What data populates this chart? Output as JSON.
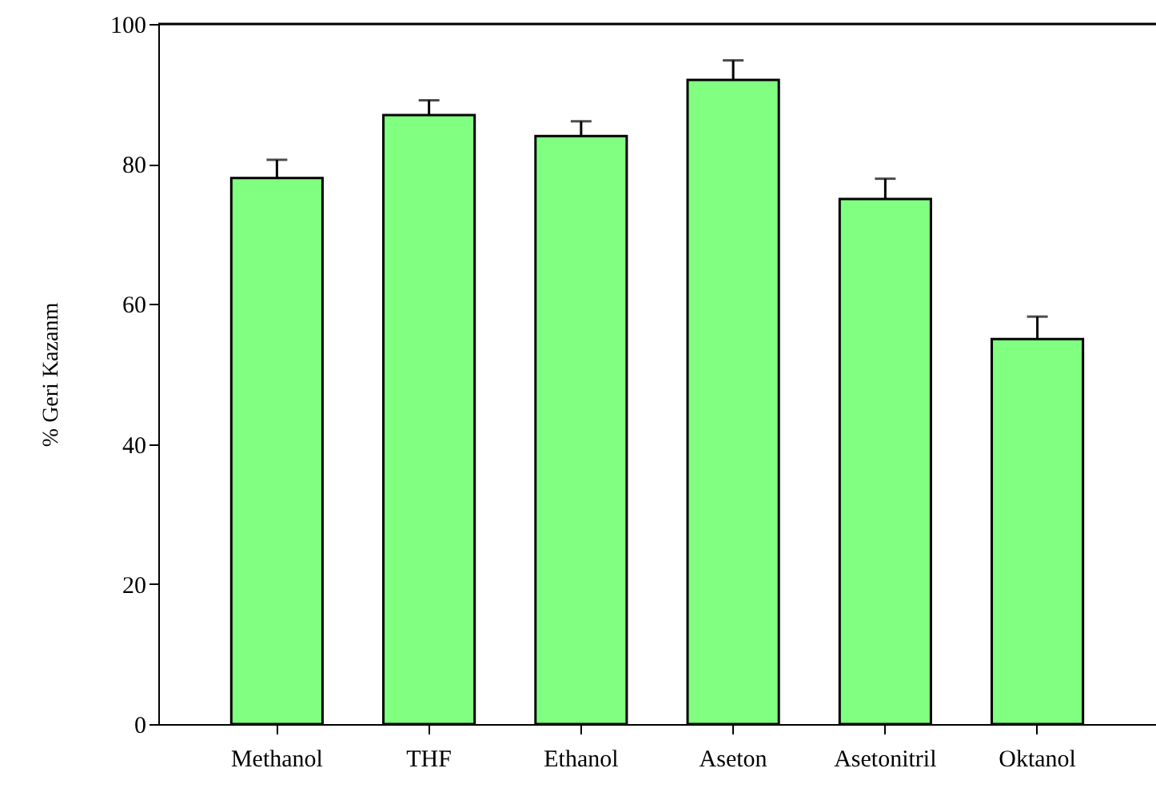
{
  "chart_data": {
    "type": "bar",
    "ylabel": "% Geri Kazanm",
    "categories": [
      "Methanol",
      "THF",
      "Ethanol",
      "Aseton",
      "Asetonitril",
      "Oktanol"
    ],
    "values": [
      78,
      87,
      84,
      92,
      75,
      55
    ],
    "errors": [
      [
        78,
        80.6
      ],
      [
        87,
        89.1
      ],
      [
        84,
        86.1
      ],
      [
        92,
        94.8
      ],
      [
        75,
        77.9
      ],
      [
        55,
        58.2
      ]
    ],
    "color": "#80ff80",
    "ylim": [
      0,
      100
    ],
    "yticks": [
      0,
      20,
      40,
      60,
      80,
      100
    ],
    "grid": false
  }
}
